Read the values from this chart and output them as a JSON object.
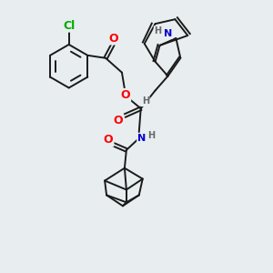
{
  "bg_color": "#e8edf0",
  "bond_color": "#1a1a1a",
  "bond_width": 1.4,
  "atom_colors": {
    "O": "#ff0000",
    "N": "#0000cc",
    "Cl": "#00aa00",
    "H": "#666666",
    "C": "#1a1a1a"
  },
  "font_size": 8,
  "fig_size": [
    3.0,
    3.0
  ],
  "dpi": 100
}
